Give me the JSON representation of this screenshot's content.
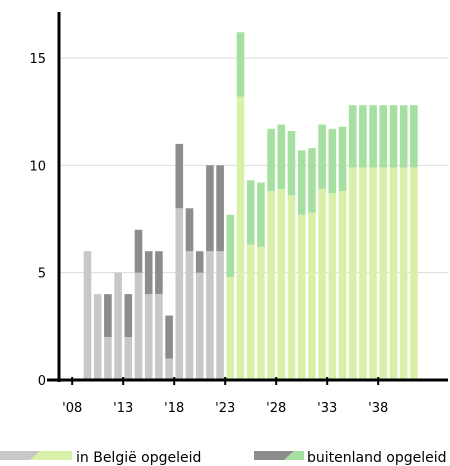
{
  "chart_data": {
    "type": "bar",
    "stacked": true,
    "x": [
      2008,
      2009,
      2010,
      2011,
      2012,
      2013,
      2014,
      2015,
      2016,
      2017,
      2018,
      2019,
      2020,
      2021,
      2022,
      2023,
      2024,
      2025,
      2026,
      2027,
      2028,
      2029,
      2030,
      2031,
      2032,
      2033,
      2034,
      2035,
      2036,
      2037,
      2038,
      2039,
      2040,
      2041
    ],
    "series": [
      {
        "name": "in België opgeleid",
        "values": [
          0,
          6,
          4,
          2,
          5,
          2,
          5,
          4,
          4,
          1,
          8,
          6,
          5,
          6,
          6,
          4.8,
          13.2,
          6.3,
          6.2,
          8.8,
          8.9,
          8.6,
          7.7,
          7.8,
          8.9,
          8.7,
          8.8,
          9.9,
          9.9,
          9.9,
          9.9,
          9.9,
          9.9,
          9.9
        ]
      },
      {
        "name": "buitenland opgeleid",
        "values": [
          0,
          0,
          0,
          2,
          0,
          2,
          2,
          2,
          2,
          2,
          3,
          2,
          1,
          4,
          4,
          2.9,
          3.0,
          3.0,
          3.0,
          2.9,
          3.0,
          3.0,
          3.0,
          3.0,
          3.0,
          3.0,
          3.0,
          2.9,
          2.9,
          2.9,
          2.9,
          2.9,
          2.9,
          2.9
        ]
      }
    ],
    "forecast_from": 2023,
    "xticks": [
      2008,
      2013,
      2018,
      2023,
      2028,
      2033,
      2038
    ],
    "xtick_labels": [
      "'08",
      "'13",
      "'18",
      "'23",
      "'28",
      "'33",
      "'38"
    ],
    "yticks": [
      0,
      5,
      10,
      15
    ],
    "ylim": [
      0,
      17
    ],
    "grid": "horizontal",
    "legend_position": "bottom",
    "colors": {
      "belgie_historic": "#c8c8c8",
      "belgie_forecast": "#d9f0a8",
      "buitenland_historic": "#8c8c8c",
      "buitenland_forecast": "#a6e0a0",
      "axis": "#000000",
      "grid": "#dddddd"
    }
  }
}
